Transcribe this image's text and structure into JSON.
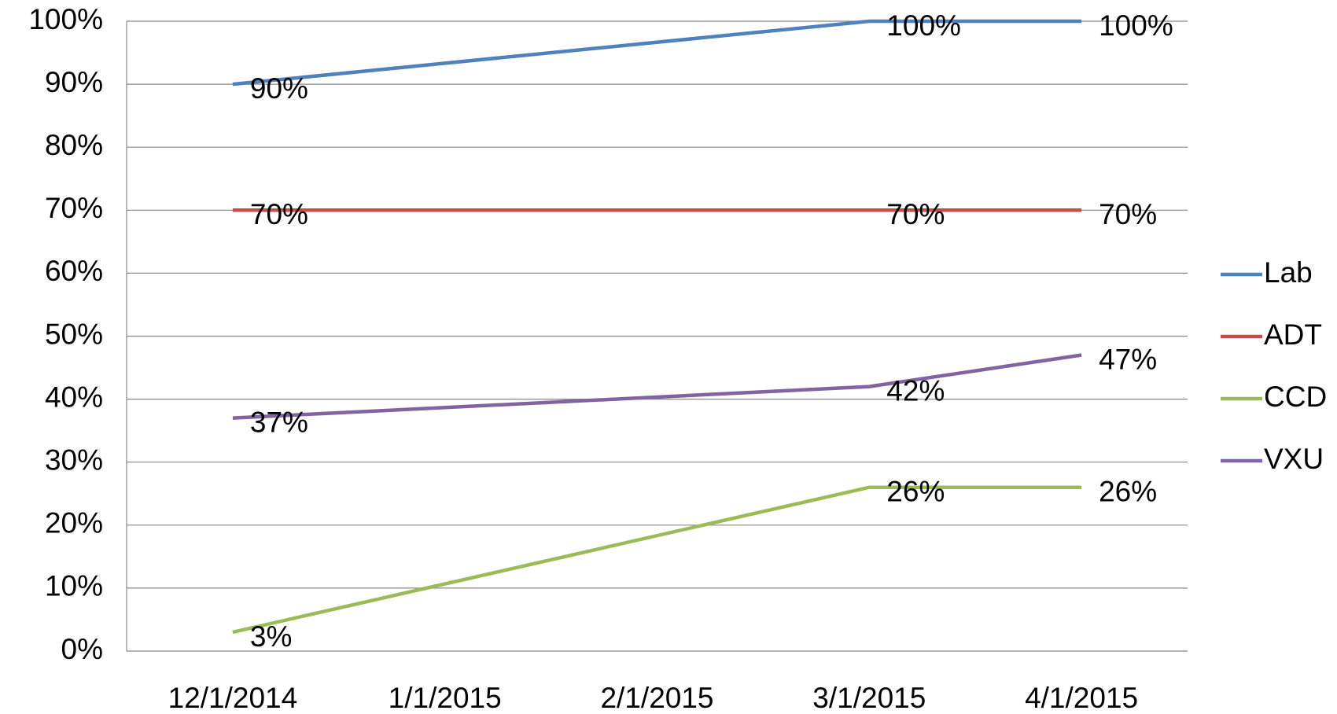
{
  "chart_data": {
    "type": "line",
    "categories": [
      "12/1/2014",
      "1/1/2015",
      "2/1/2015",
      "3/1/2015",
      "4/1/2015"
    ],
    "series": [
      {
        "name": "Lab",
        "color": "#4f81bd",
        "x": [
          "12/1/2014",
          "3/1/2015",
          "4/1/2015"
        ],
        "values": [
          90,
          100,
          100
        ],
        "value_labels": [
          "90%",
          "100%",
          "100%"
        ]
      },
      {
        "name": "ADT",
        "color": "#c0504d",
        "x": [
          "12/1/2014",
          "3/1/2015",
          "4/1/2015"
        ],
        "values": [
          70,
          70,
          70
        ],
        "value_labels": [
          "70%",
          "70%",
          "70%"
        ]
      },
      {
        "name": "CCD",
        "color": "#9bbb59",
        "x": [
          "12/1/2014",
          "3/1/2015",
          "4/1/2015"
        ],
        "values": [
          3,
          26,
          26
        ],
        "value_labels": [
          "3%",
          "26%",
          "26%"
        ]
      },
      {
        "name": "VXU",
        "color": "#8064a2",
        "x": [
          "12/1/2014",
          "3/1/2015",
          "4/1/2015"
        ],
        "values": [
          37,
          42,
          47
        ],
        "value_labels": [
          "37%",
          "42%",
          "47%"
        ]
      }
    ],
    "ylim": [
      0,
      100
    ],
    "yticks": [
      {
        "value": 0,
        "label": "0%"
      },
      {
        "value": 10,
        "label": "10%"
      },
      {
        "value": 20,
        "label": "20%"
      },
      {
        "value": 30,
        "label": "30%"
      },
      {
        "value": 40,
        "label": "40%"
      },
      {
        "value": 50,
        "label": "50%"
      },
      {
        "value": 60,
        "label": "60%"
      },
      {
        "value": 70,
        "label": "70%"
      },
      {
        "value": 80,
        "label": "80%"
      },
      {
        "value": 90,
        "label": "90%"
      },
      {
        "value": 100,
        "label": "100%"
      }
    ],
    "grid": true,
    "legend": "right"
  }
}
